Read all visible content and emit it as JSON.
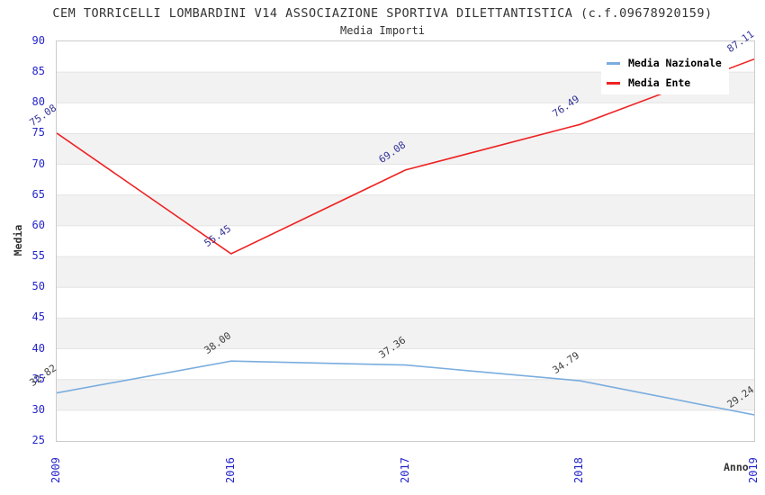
{
  "title": "CEM TORRICELLI LOMBARDINI V14 ASSOCIAZIONE SPORTIVA DILETTANTISTICA (c.f.09678920159)",
  "subtitle": "Media Importi",
  "chart_data": {
    "type": "line",
    "categories": [
      "2009",
      "2016",
      "2017",
      "2018",
      "2019"
    ],
    "series": [
      {
        "name": "Media Nazionale",
        "values": [
          32.82,
          38.0,
          37.36,
          34.79,
          29.24
        ],
        "color": "#7aadde",
        "label_color": "#404040"
      },
      {
        "name": "Media Ente",
        "values": [
          75.08,
          55.45,
          69.08,
          76.49,
          87.11
        ],
        "color": "#ee2222",
        "label_color": "#333399"
      }
    ],
    "xlabel": "Anno",
    "ylabel": "Media",
    "ylim": [
      25,
      90
    ],
    "ytick_step": 5,
    "grid": "horizontal-bands",
    "band_color": "#f2f2f2",
    "gridline_color": "#e4e4e4",
    "tick_label_color": "#2424cc",
    "legend_position": "top-right",
    "data_label_decimals": 2
  }
}
